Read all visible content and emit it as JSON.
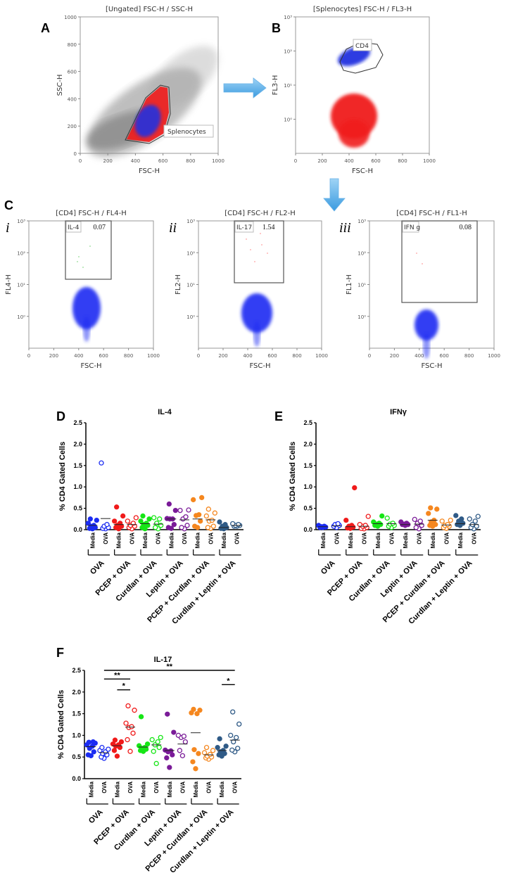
{
  "panel_letters": {
    "A": "A",
    "B": "B",
    "C": "C",
    "D": "D",
    "E": "E",
    "F": "F",
    "i": "i",
    "ii": "ii",
    "iii": "iii"
  },
  "flow_panels": {
    "A": {
      "title": "[Ungated] FSC-H / SSC-H",
      "xlabel": "FSC-H",
      "ylabel": "SSC-H",
      "xticks": [
        "0",
        "200",
        "400",
        "600",
        "800",
        "1000"
      ],
      "yticks": [
        "0",
        "200",
        "400",
        "600",
        "800",
        "1000"
      ],
      "gate": {
        "label": "Splenocytes"
      }
    },
    "B": {
      "title": "[Splenocytes] FSC-H / FL3-H",
      "xlabel": "FSC-H",
      "ylabel": "FL3-H",
      "xticks": [
        "0",
        "200",
        "400",
        "600",
        "800",
        "1000"
      ],
      "yticks": [
        "10⁰",
        "10¹",
        "10²",
        "10³"
      ],
      "gate": {
        "label": "CD4"
      }
    },
    "Ci": {
      "title": "[CD4] FSC-H / FL4-H",
      "xlabel": "FSC-H",
      "ylabel": "FL4-H",
      "xticks": [
        "0",
        "200",
        "400",
        "600",
        "800",
        "1000"
      ],
      "yticks": [
        "10⁰",
        "10¹",
        "10²",
        "10³"
      ],
      "gate": {
        "label": "IL-4",
        "value": "0.07"
      }
    },
    "Cii": {
      "title": "[CD4] FSC-H / FL2-H",
      "xlabel": "FSC-H",
      "ylabel": "FL2-H",
      "xticks": [
        "0",
        "200",
        "400",
        "600",
        "800",
        "1000"
      ],
      "yticks": [
        "10⁰",
        "10¹",
        "10²",
        "10³"
      ],
      "gate": {
        "label": "IL-17",
        "value": "1.54"
      }
    },
    "Ciii": {
      "title": "[CD4] FSC-H / FL1-H",
      "xlabel": "FSC-H",
      "ylabel": "FL1-H",
      "xticks": [
        "0",
        "200",
        "400",
        "600",
        "800",
        "1000"
      ],
      "yticks": [
        "10⁰",
        "10¹",
        "10²",
        "10³"
      ],
      "gate": {
        "label": "IFN g",
        "value": "0.08"
      }
    }
  },
  "groups": [
    {
      "name": "OVA",
      "color": "#1b2cf2"
    },
    {
      "name": "PCEP + OVA",
      "color": "#f01a1a"
    },
    {
      "name": "Curdlan + OVA",
      "color": "#16e616"
    },
    {
      "name": "Leptin + OVA",
      "color": "#7a1b98"
    },
    {
      "name": "PCEP + Curdlan + OVA",
      "color": "#f5871f"
    },
    {
      "name": "Curdlan + Leptin + OVA",
      "color": "#2f5a86"
    }
  ],
  "conditions": [
    "Media",
    "OVA"
  ],
  "chart_data": [
    {
      "panel": "D",
      "type": "scatter",
      "title": "IL-4",
      "ylabel": "% CD4 Gated Cells",
      "ylim": [
        0,
        2.5
      ],
      "yticks": [
        "0.0",
        "0.5",
        "1.0",
        "1.5",
        "2.0",
        "2.5"
      ],
      "series": [
        {
          "group": 0,
          "condition": "Media",
          "values": [
            0.25,
            0.22,
            0.15,
            0.1,
            0.08,
            0.05,
            0.03,
            0.02
          ],
          "mean": 0.1
        },
        {
          "group": 0,
          "condition": "OVA",
          "values": [
            1.56,
            0.12,
            0.08,
            0.05,
            0.03,
            0.02
          ],
          "mean": 0.26
        },
        {
          "group": 1,
          "condition": "Media",
          "values": [
            0.53,
            0.32,
            0.2,
            0.15,
            0.1,
            0.08,
            0.05,
            0.02
          ],
          "mean": 0.12
        },
        {
          "group": 1,
          "condition": "OVA",
          "values": [
            0.28,
            0.2,
            0.15,
            0.1,
            0.08,
            0.05,
            0.02
          ],
          "mean": 0.12
        },
        {
          "group": 2,
          "condition": "Media",
          "values": [
            0.32,
            0.25,
            0.2,
            0.15,
            0.12,
            0.1,
            0.05,
            0.02
          ],
          "mean": 0.14
        },
        {
          "group": 2,
          "condition": "OVA",
          "values": [
            0.28,
            0.25,
            0.15,
            0.1,
            0.05,
            0.02
          ],
          "mean": 0.13
        },
        {
          "group": 3,
          "condition": "Media",
          "values": [
            0.6,
            0.45,
            0.26,
            0.25,
            0.25,
            0.12,
            0.05,
            0.03
          ],
          "mean": 0.25
        },
        {
          "group": 3,
          "condition": "OVA",
          "values": [
            0.46,
            0.45,
            0.3,
            0.25,
            0.1,
            0.05,
            0.02
          ],
          "mean": 0.23
        },
        {
          "group": 4,
          "condition": "Media",
          "values": [
            0.75,
            0.7,
            0.35,
            0.33,
            0.2,
            0.08,
            0.05
          ],
          "mean": 0.25
        },
        {
          "group": 4,
          "condition": "OVA",
          "values": [
            0.48,
            0.39,
            0.32,
            0.22,
            0.2,
            0.08,
            0.05,
            0.03
          ],
          "mean": 0.23
        },
        {
          "group": 5,
          "condition": "Media",
          "values": [
            0.18,
            0.12,
            0.08,
            0.05,
            0.03,
            0.02
          ],
          "mean": 0.05
        },
        {
          "group": 5,
          "condition": "OVA",
          "values": [
            0.14,
            0.12,
            0.1,
            0.1,
            0.08,
            0.08
          ],
          "mean": 0.1
        }
      ],
      "significance": []
    },
    {
      "panel": "E",
      "type": "scatter",
      "title": "IFNγ",
      "ylabel": "% CD4 Gated Cells",
      "ylim": [
        0,
        2.5
      ],
      "yticks": [
        "0.0",
        "0.5",
        "1.0",
        "1.5",
        "2.0",
        "2.5"
      ],
      "series": [
        {
          "group": 0,
          "condition": "Media",
          "values": [
            0.1,
            0.08,
            0.07,
            0.06,
            0.05,
            0.05
          ],
          "mean": 0.07
        },
        {
          "group": 0,
          "condition": "OVA",
          "values": [
            0.14,
            0.12,
            0.1,
            0.08,
            0.05
          ],
          "mean": 0.09
        },
        {
          "group": 1,
          "condition": "Media",
          "values": [
            0.98,
            0.22,
            0.1,
            0.08,
            0.06,
            0.04,
            0.03
          ],
          "mean": 0.07
        },
        {
          "group": 1,
          "condition": "OVA",
          "values": [
            0.31,
            0.12,
            0.1,
            0.08,
            0.05,
            0.03,
            0.02
          ],
          "mean": 0.08
        },
        {
          "group": 2,
          "condition": "Media",
          "values": [
            0.32,
            0.18,
            0.15,
            0.13,
            0.12,
            0.1,
            0.08
          ],
          "mean": 0.14
        },
        {
          "group": 2,
          "condition": "OVA",
          "values": [
            0.27,
            0.15,
            0.13,
            0.1,
            0.08,
            0.05
          ],
          "mean": 0.14
        },
        {
          "group": 3,
          "condition": "Media",
          "values": [
            0.18,
            0.15,
            0.13,
            0.12,
            0.12,
            0.1
          ],
          "mean": 0.12
        },
        {
          "group": 3,
          "condition": "OVA",
          "values": [
            0.24,
            0.2,
            0.15,
            0.1,
            0.05,
            0.02
          ],
          "mean": 0.13
        },
        {
          "group": 4,
          "condition": "Media",
          "values": [
            0.51,
            0.48,
            0.38,
            0.22,
            0.18,
            0.12,
            0.1,
            0.08
          ],
          "mean": 0.22
        },
        {
          "group": 4,
          "condition": "OVA",
          "values": [
            0.22,
            0.2,
            0.12,
            0.1,
            0.08,
            0.05,
            0.03
          ],
          "mean": 0.11
        },
        {
          "group": 5,
          "condition": "Media",
          "values": [
            0.33,
            0.25,
            0.2,
            0.15,
            0.12,
            0.1
          ],
          "mean": 0.14
        },
        {
          "group": 5,
          "condition": "OVA",
          "values": [
            0.31,
            0.25,
            0.2,
            0.12,
            0.08,
            0.05,
            0.02
          ],
          "mean": 0.12
        }
      ],
      "significance": []
    },
    {
      "panel": "F",
      "type": "scatter",
      "title": "IL-17",
      "ylabel": "% CD4 Gated Cells",
      "ylim": [
        0,
        2.5
      ],
      "yticks": [
        "0.0",
        "0.5",
        "1.0",
        "1.5",
        "2.0",
        "2.5"
      ],
      "series": [
        {
          "group": 0,
          "condition": "Media",
          "values": [
            0.85,
            0.84,
            0.82,
            0.78,
            0.75,
            0.7,
            0.62,
            0.55,
            0.53
          ],
          "mean": 0.74
        },
        {
          "group": 0,
          "condition": "OVA",
          "values": [
            0.72,
            0.68,
            0.62,
            0.58,
            0.55,
            0.5,
            0.47,
            0.65
          ],
          "mean": 0.6
        },
        {
          "group": 1,
          "condition": "Media",
          "values": [
            0.89,
            0.85,
            0.8,
            0.78,
            0.75,
            0.72,
            0.65,
            0.52
          ],
          "mean": 0.76
        },
        {
          "group": 1,
          "condition": "OVA",
          "values": [
            1.68,
            1.58,
            1.28,
            1.2,
            1.18,
            1.05,
            0.9,
            0.63
          ],
          "mean": 1.19
        },
        {
          "group": 2,
          "condition": "Media",
          "values": [
            1.43,
            0.8,
            0.76,
            0.72,
            0.7,
            0.68,
            0.65,
            0.63
          ],
          "mean": 0.73
        },
        {
          "group": 2,
          "condition": "OVA",
          "values": [
            0.95,
            0.9,
            0.85,
            0.78,
            0.72,
            0.63,
            0.35
          ],
          "mean": 0.78
        },
        {
          "group": 3,
          "condition": "Media",
          "values": [
            1.49,
            1.07,
            0.66,
            0.64,
            0.62,
            0.55,
            0.48,
            0.26
          ],
          "mean": 0.65
        },
        {
          "group": 3,
          "condition": "OVA",
          "values": [
            1.0,
            0.98,
            0.95,
            0.85,
            0.65,
            0.53
          ],
          "mean": 0.8
        },
        {
          "group": 4,
          "condition": "Media",
          "values": [
            1.6,
            1.58,
            1.52,
            1.5,
            0.67,
            0.58,
            0.39,
            0.23
          ],
          "mean": 1.06
        },
        {
          "group": 4,
          "condition": "OVA",
          "values": [
            0.72,
            0.65,
            0.6,
            0.56,
            0.52,
            0.5,
            0.48,
            0.45
          ],
          "mean": 0.55
        },
        {
          "group": 5,
          "condition": "Media",
          "values": [
            0.92,
            0.75,
            0.72,
            0.65,
            0.62,
            0.58,
            0.55,
            0.52
          ],
          "mean": 0.65
        },
        {
          "group": 5,
          "condition": "OVA",
          "values": [
            1.54,
            1.26,
            1.0,
            0.95,
            0.85,
            0.7,
            0.66,
            0.62
          ],
          "mean": 0.89
        }
      ],
      "significance": [
        {
          "from": 1,
          "to": 11,
          "y": 2.5,
          "label": "**"
        },
        {
          "from": 1,
          "to": 3,
          "y": 2.3,
          "label": "**"
        },
        {
          "from": 2,
          "to": 3,
          "y": 2.05,
          "label": "*"
        },
        {
          "from": 10,
          "to": 11,
          "y": 2.17,
          "label": "*"
        }
      ]
    }
  ]
}
